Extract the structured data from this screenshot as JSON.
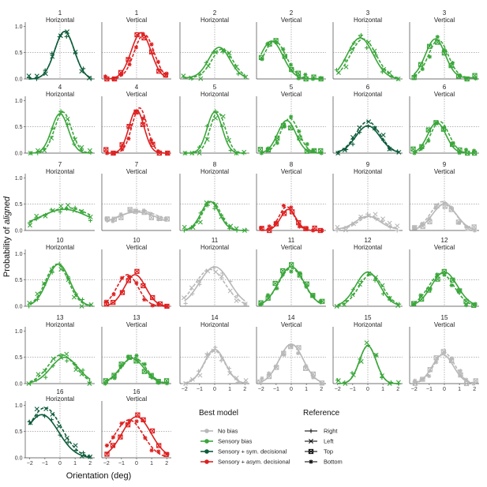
{
  "colors": {
    "No bias": "#b8b8b8",
    "Sensory bias": "#3aa63a",
    "Sensory + sym. decisional": "#0d5c3a",
    "Sensory + asym. decisional": "#dd2020"
  },
  "chart_data": {
    "type": "line",
    "xlabel": "Orientation (deg)",
    "ylabel_prefix": "Probability of ",
    "ylabel_italic": "aligned",
    "xticks": [
      "−2",
      "−1",
      "0",
      "1",
      "2"
    ],
    "yticks": [
      "0.0",
      "0.5",
      "1.0"
    ],
    "xlim": [
      -2.3,
      2.3
    ],
    "ylim": [
      0,
      1.05
    ],
    "legend": {
      "model_title": "Best model",
      "models": [
        "No bias",
        "Sensory bias",
        "Sensory + sym. decisional",
        "Sensory + asym. decisional"
      ],
      "reference_title": "Reference",
      "references": [
        "Right",
        "Left",
        "Top",
        "Bottom"
      ]
    },
    "panels": [
      {
        "subject": "1",
        "orientation": "Horizontal",
        "model": "Sensory + sym. decisional",
        "mu": 0.3,
        "s": 0.65,
        "a": 0.9,
        "b": 0.0,
        "mu2": 0.3,
        "a2": 0.9,
        "refs": [
          "Right",
          "Left"
        ]
      },
      {
        "subject": "1",
        "orientation": "Vertical",
        "model": "Sensory + asym. decisional",
        "mu": 0.3,
        "s": 0.65,
        "a": 0.88,
        "b": 0.0,
        "mu2": 0.5,
        "a2": 0.85,
        "refs": [
          "Top",
          "Bottom"
        ]
      },
      {
        "subject": "2",
        "orientation": "Horizontal",
        "model": "Sensory bias",
        "mu": 0.3,
        "s": 0.7,
        "a": 0.58,
        "b": 0.02,
        "mu2": 0.5,
        "a2": 0.55,
        "refs": [
          "Right",
          "Left"
        ]
      },
      {
        "subject": "2",
        "orientation": "Vertical",
        "model": "Sensory bias",
        "mu": -1.3,
        "s": 0.75,
        "a": 0.72,
        "b": 0.0,
        "mu2": -1.1,
        "a2": 0.72,
        "refs": [
          "Top",
          "Bottom"
        ]
      },
      {
        "subject": "3",
        "orientation": "Horizontal",
        "model": "Sensory bias",
        "mu": -0.5,
        "s": 0.85,
        "a": 0.78,
        "b": 0.0,
        "mu2": -0.3,
        "a2": 0.76,
        "refs": [
          "Right",
          "Left"
        ]
      },
      {
        "subject": "3",
        "orientation": "Vertical",
        "model": "Sensory bias",
        "mu": -0.6,
        "s": 0.65,
        "a": 0.74,
        "b": 0.02,
        "mu2": -0.4,
        "a2": 0.72,
        "refs": [
          "Top",
          "Bottom"
        ]
      },
      {
        "subject": "4",
        "orientation": "Horizontal",
        "model": "Sensory bias",
        "mu": 0.0,
        "s": 0.55,
        "a": 0.75,
        "b": 0.0,
        "mu2": 0.2,
        "a2": 0.78,
        "refs": [
          "Right",
          "Left"
        ]
      },
      {
        "subject": "4",
        "orientation": "Vertical",
        "model": "Sensory + asym. decisional",
        "mu": 0.0,
        "s": 0.5,
        "a": 0.82,
        "b": 0.0,
        "mu2": 0.2,
        "a2": 0.86,
        "refs": [
          "Top",
          "Bottom"
        ]
      },
      {
        "subject": "5",
        "orientation": "Horizontal",
        "model": "Sensory bias",
        "mu": 0.0,
        "s": 0.5,
        "a": 0.78,
        "b": 0.0,
        "mu2": 0.2,
        "a2": 0.78,
        "refs": [
          "Right",
          "Left"
        ]
      },
      {
        "subject": "5",
        "orientation": "Vertical",
        "model": "Sensory bias",
        "mu": -0.3,
        "s": 0.6,
        "a": 0.62,
        "b": 0.0,
        "mu2": -0.1,
        "a2": 0.66,
        "refs": [
          "Top",
          "Bottom"
        ]
      },
      {
        "subject": "6",
        "orientation": "Horizontal",
        "model": "Sensory + sym. decisional",
        "mu": 0.0,
        "s": 0.8,
        "a": 0.52,
        "b": 0.0,
        "mu2": 0.0,
        "a2": 0.6,
        "refs": [
          "Right",
          "Left"
        ]
      },
      {
        "subject": "6",
        "orientation": "Vertical",
        "model": "Sensory bias",
        "mu": -0.5,
        "s": 0.6,
        "a": 0.58,
        "b": 0.0,
        "mu2": -0.3,
        "a2": 0.6,
        "refs": [
          "Top",
          "Bottom"
        ]
      },
      {
        "subject": "7",
        "orientation": "Horizontal",
        "model": "Sensory bias",
        "mu": 0.3,
        "s": 1.6,
        "a": 0.35,
        "b": 0.05,
        "mu2": 0.5,
        "a2": 0.38,
        "refs": [
          "Right",
          "Left"
        ]
      },
      {
        "subject": "7",
        "orientation": "Vertical",
        "model": "No bias",
        "mu": 0.0,
        "s": 1.5,
        "a": 0.3,
        "b": 0.05,
        "mu2": 0.2,
        "a2": 0.32,
        "refs": [
          "Top",
          "Bottom"
        ]
      },
      {
        "subject": "8",
        "orientation": "Horizontal",
        "model": "Sensory bias",
        "mu": -0.3,
        "s": 0.6,
        "a": 0.55,
        "b": 0.0,
        "mu2": -0.2,
        "a2": 0.55,
        "refs": [
          "Right",
          "Left"
        ]
      },
      {
        "subject": "8",
        "orientation": "Vertical",
        "model": "Sensory + asym. decisional",
        "mu": -0.2,
        "s": 0.5,
        "a": 0.4,
        "b": 0.0,
        "mu2": -0.3,
        "a2": 0.45,
        "refs": [
          "Top",
          "Bottom"
        ]
      },
      {
        "subject": "9",
        "orientation": "Horizontal",
        "model": "No bias",
        "mu": 0.0,
        "s": 0.8,
        "a": 0.25,
        "b": 0.02,
        "mu2": 0.2,
        "a2": 0.25,
        "refs": [
          "Right",
          "Left"
        ]
      },
      {
        "subject": "9",
        "orientation": "Vertical",
        "model": "No bias",
        "mu": 0.0,
        "s": 0.8,
        "a": 0.5,
        "b": 0.0,
        "mu2": -0.1,
        "a2": 0.55,
        "refs": [
          "Top",
          "Bottom"
        ]
      },
      {
        "subject": "10",
        "orientation": "Horizontal",
        "model": "Sensory bias",
        "mu": -0.1,
        "s": 0.75,
        "a": 0.8,
        "b": 0.0,
        "mu2": -0.2,
        "a2": 0.8,
        "refs": [
          "Right",
          "Left"
        ]
      },
      {
        "subject": "10",
        "orientation": "Vertical",
        "model": "Sensory + asym. decisional",
        "mu": -0.1,
        "s": 0.7,
        "a": 0.6,
        "b": 0.0,
        "mu2": -0.6,
        "a2": 0.6,
        "refs": [
          "Top",
          "Bottom"
        ]
      },
      {
        "subject": "11",
        "orientation": "Horizontal",
        "model": "No bias",
        "mu": 0.0,
        "s": 1.0,
        "a": 0.75,
        "b": 0.0,
        "mu2": -0.3,
        "a2": 0.7,
        "refs": [
          "Right",
          "Left"
        ]
      },
      {
        "subject": "11",
        "orientation": "Vertical",
        "model": "Sensory bias",
        "mu": 0.0,
        "s": 0.85,
        "a": 0.75,
        "b": 0.0,
        "mu2": 0.0,
        "a2": 0.72,
        "refs": [
          "Top",
          "Bottom"
        ]
      },
      {
        "subject": "12",
        "orientation": "Horizontal",
        "model": "Sensory bias",
        "mu": 0.0,
        "s": 0.8,
        "a": 0.65,
        "b": 0.0,
        "mu2": 0.2,
        "a2": 0.6,
        "refs": [
          "Right",
          "Left"
        ]
      },
      {
        "subject": "12",
        "orientation": "Vertical",
        "model": "Sensory bias",
        "mu": 0.0,
        "s": 0.85,
        "a": 0.65,
        "b": 0.0,
        "mu2": -0.2,
        "a2": 0.62,
        "refs": [
          "Top",
          "Bottom"
        ]
      },
      {
        "subject": "13",
        "orientation": "Horizontal",
        "model": "Sensory bias",
        "mu": 0.3,
        "s": 0.9,
        "a": 0.5,
        "b": 0.0,
        "mu2": 0.1,
        "a2": 0.55,
        "refs": [
          "Right",
          "Left"
        ]
      },
      {
        "subject": "13",
        "orientation": "Vertical",
        "model": "Sensory bias",
        "mu": -0.3,
        "s": 0.8,
        "a": 0.48,
        "b": 0.0,
        "mu2": -0.2,
        "a2": 0.5,
        "refs": [
          "Top",
          "Bottom"
        ]
      },
      {
        "subject": "14",
        "orientation": "Horizontal",
        "model": "No bias",
        "mu": 0.0,
        "s": 0.7,
        "a": 0.65,
        "b": 0.0,
        "mu2": 0.0,
        "a2": 0.62,
        "refs": [
          "Right",
          "Left"
        ]
      },
      {
        "subject": "14",
        "orientation": "Vertical",
        "model": "No bias",
        "mu": 0.0,
        "s": 0.8,
        "a": 0.75,
        "b": 0.0,
        "mu2": 0.0,
        "a2": 0.75,
        "refs": [
          "Top",
          "Bottom"
        ]
      },
      {
        "subject": "15",
        "orientation": "Horizontal",
        "model": "Sensory bias",
        "mu": 0.0,
        "s": 0.55,
        "a": 0.72,
        "b": 0.0,
        "mu2": 0.0,
        "a2": 0.72,
        "refs": [
          "Right",
          "Left"
        ]
      },
      {
        "subject": "15",
        "orientation": "Vertical",
        "model": "No bias",
        "mu": -0.1,
        "s": 0.7,
        "a": 0.55,
        "b": 0.0,
        "mu2": 0.0,
        "a2": 0.58,
        "refs": [
          "Top",
          "Bottom"
        ]
      },
      {
        "subject": "16",
        "orientation": "Horizontal",
        "model": "Sensory + sym. decisional",
        "mu": -1.2,
        "s": 1.1,
        "a": 0.82,
        "b": 0.0,
        "mu2": -1.0,
        "a2": 0.95,
        "refs": [
          "Right",
          "Left"
        ]
      },
      {
        "subject": "16",
        "orientation": "Vertical",
        "model": "Sensory + asym. decisional",
        "mu": 0.0,
        "s": 0.95,
        "a": 0.78,
        "b": 0.0,
        "mu2": -0.5,
        "a2": 0.72,
        "refs": [
          "Top",
          "Bottom"
        ]
      }
    ]
  }
}
